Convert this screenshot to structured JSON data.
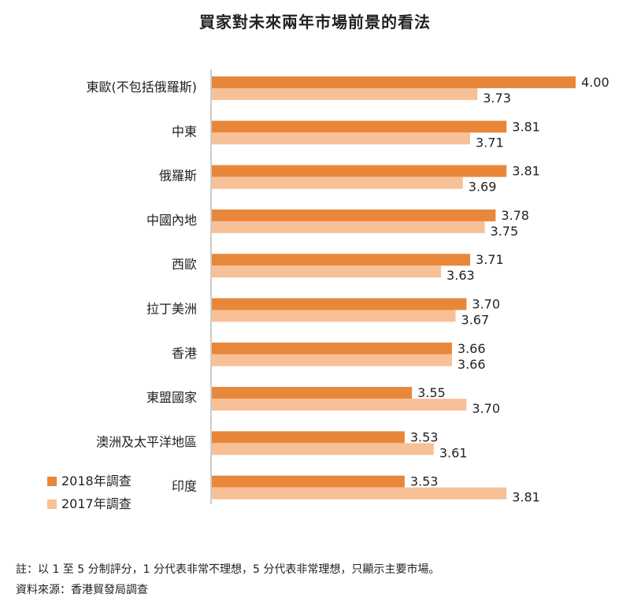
{
  "chart_data": {
    "type": "bar",
    "orientation": "horizontal",
    "title": "買家對未來兩年市場前景的看法",
    "categories": [
      "東歐(不包括俄羅斯)",
      "中東",
      "俄羅斯",
      "中國內地",
      "西歐",
      "拉丁美洲",
      "香港",
      "東盟國家",
      "澳洲及太平洋地區",
      "印度"
    ],
    "series": [
      {
        "name": "2018年調查",
        "color": "#E8873A",
        "values": [
          4.0,
          3.81,
          3.81,
          3.78,
          3.71,
          3.7,
          3.66,
          3.55,
          3.53,
          3.53
        ],
        "labels": [
          "4.00",
          "3.81",
          "3.81",
          "3.78",
          "3.71",
          "3.70",
          "3.66",
          "3.55",
          "3.53",
          "3.53"
        ]
      },
      {
        "name": "2017年調查",
        "color": "#F8C097",
        "values": [
          3.73,
          3.71,
          3.69,
          3.75,
          3.63,
          3.67,
          3.66,
          3.7,
          3.61,
          3.81
        ],
        "labels": [
          "3.73",
          "3.71",
          "3.69",
          "3.75",
          "3.63",
          "3.67",
          "3.66",
          "3.70",
          "3.61",
          "3.81"
        ]
      }
    ],
    "xlim": [
      3.0,
      4.0
    ],
    "grid": false,
    "legend_position": "bottom-left"
  },
  "footnotes": {
    "note": "註：以 1 至 5 分制評分，1 分代表非常不理想，5 分代表非常理想，只顯示主要市場。",
    "source": "資料來源：香港貿發局調查"
  }
}
